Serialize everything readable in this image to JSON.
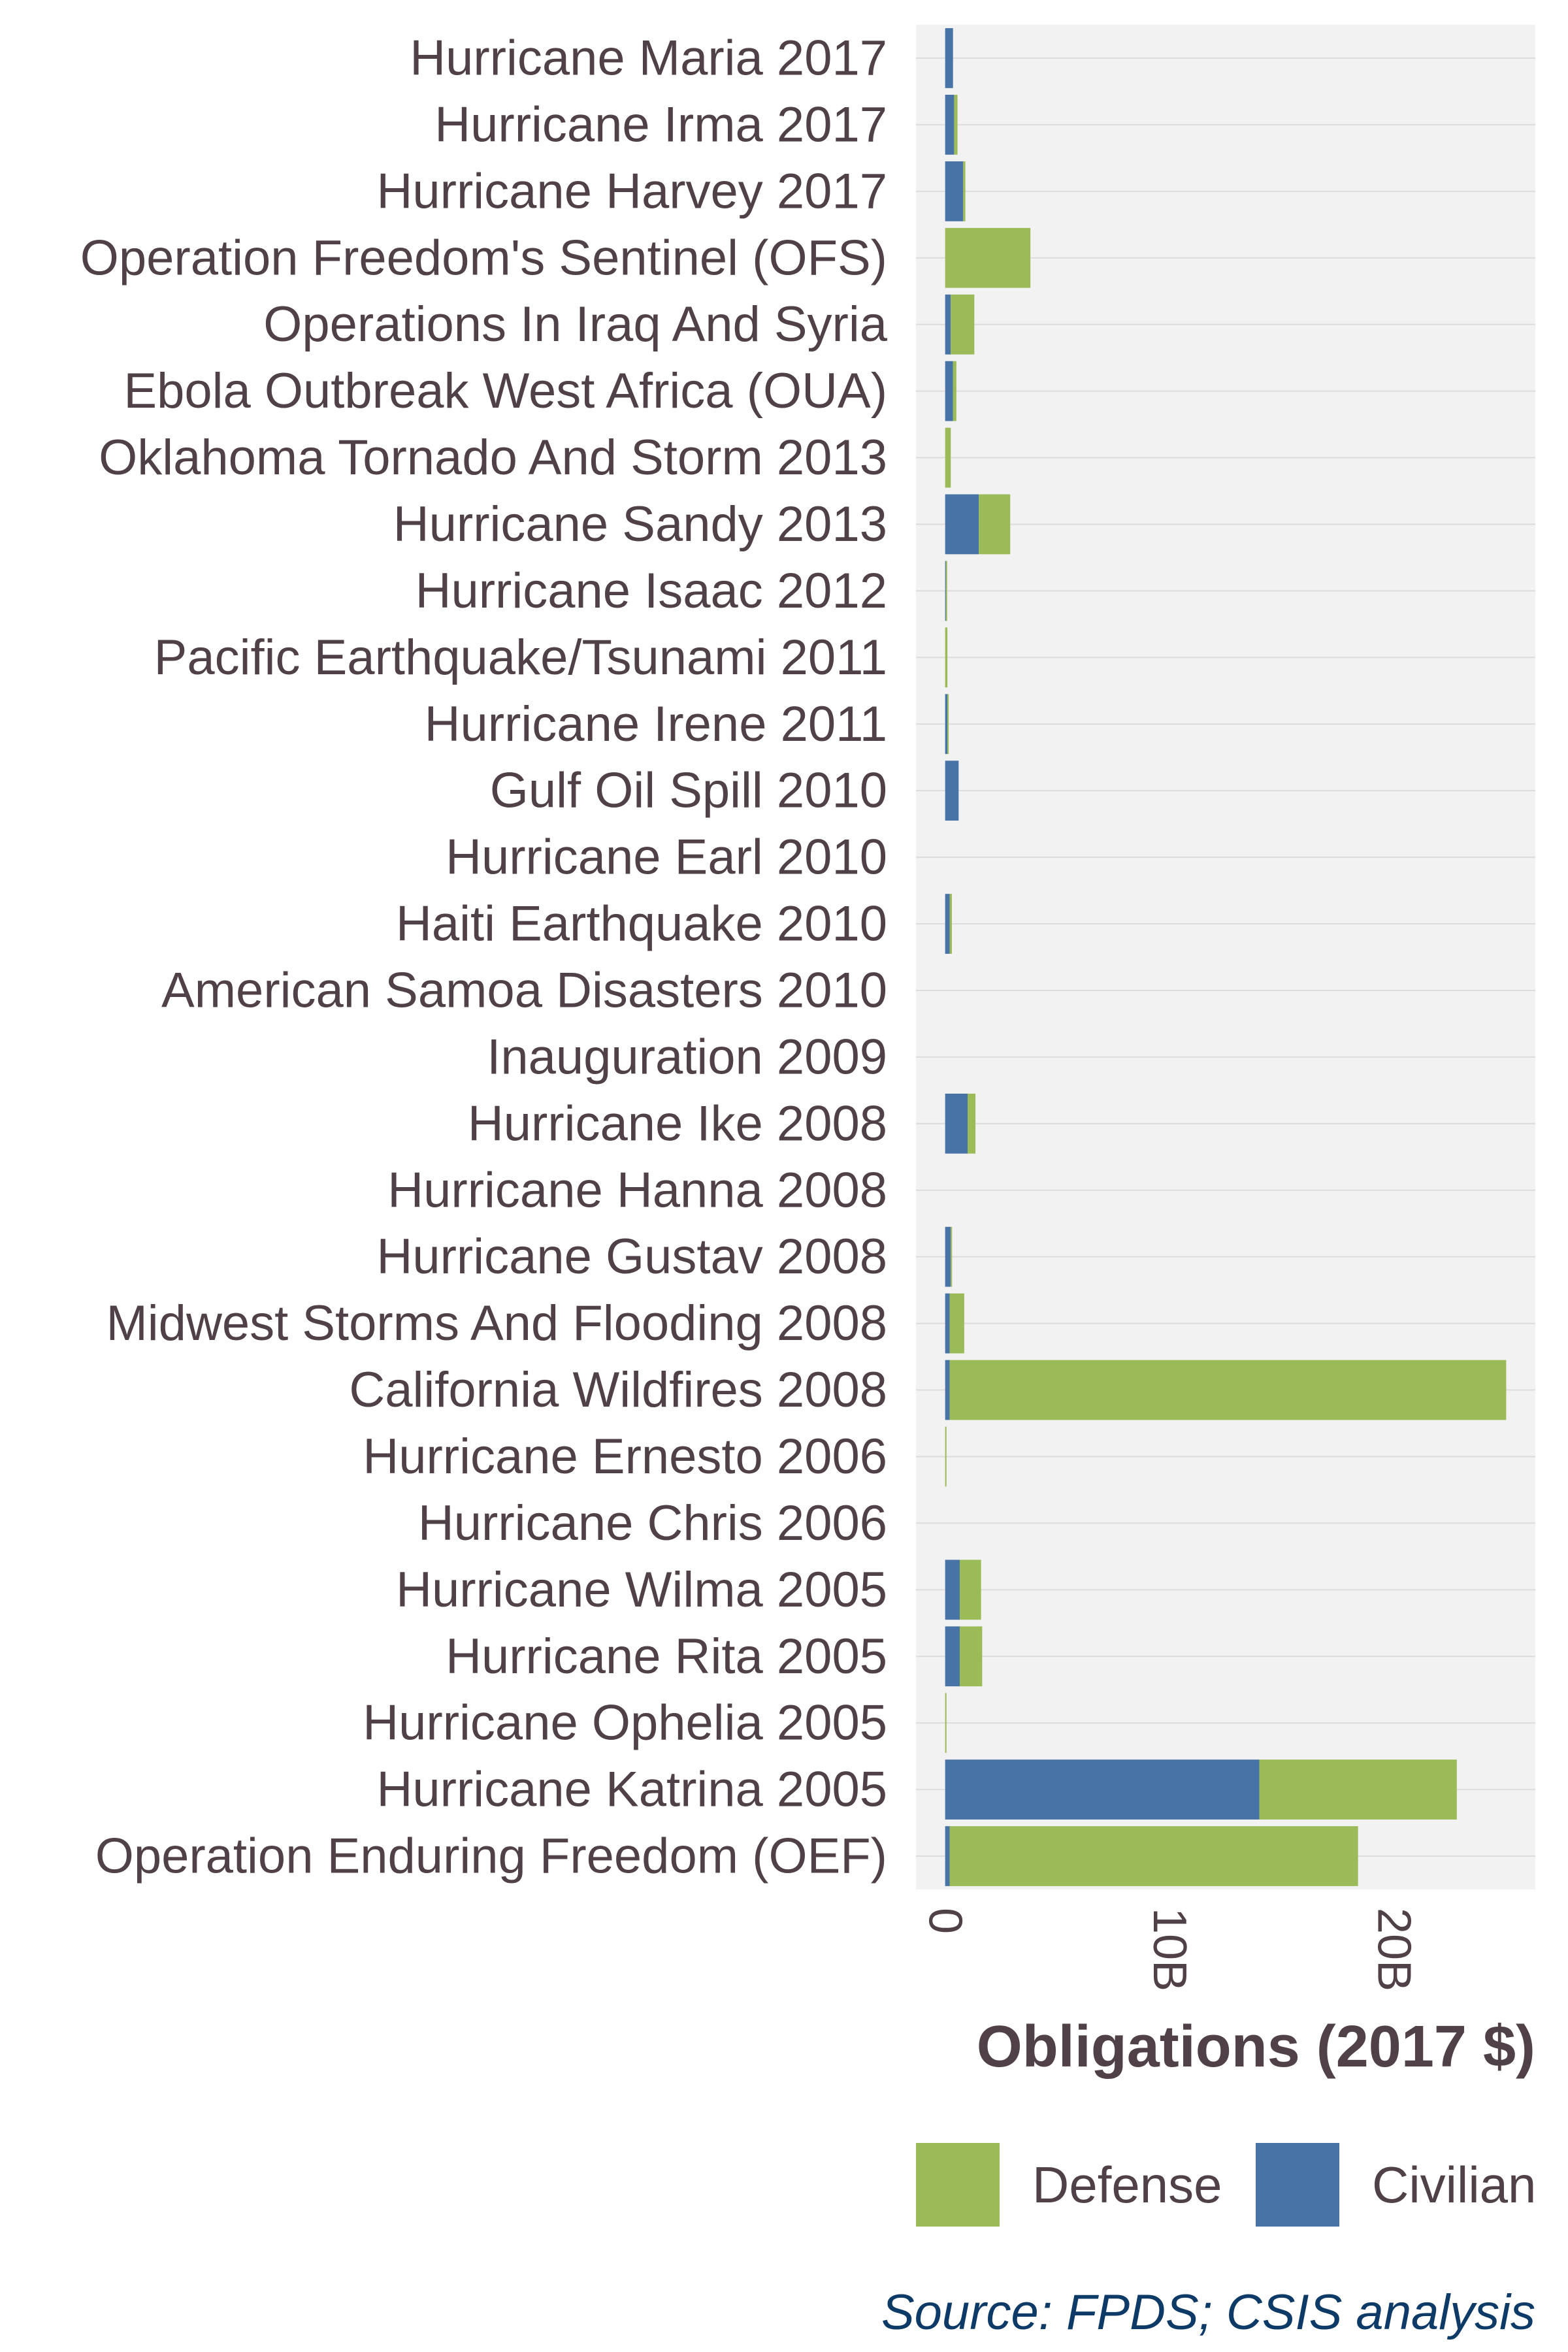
{
  "chart_data": {
    "type": "bar",
    "orientation": "horizontal",
    "stacked": true,
    "categories": [
      "Hurricane Maria 2017",
      "Hurricane Irma 2017",
      "Hurricane Harvey 2017",
      "Operation Freedom's Sentinel (OFS)",
      "Operations In Iraq And Syria",
      "Ebola Outbreak West Africa (OUA)",
      "Oklahoma Tornado And Storm 2013",
      "Hurricane Sandy 2013",
      "Hurricane Isaac 2012",
      "Pacific Earthquake/Tsunami 2011",
      "Hurricane Irene 2011",
      "Gulf Oil Spill 2010",
      "Hurricane Earl 2010",
      "Haiti Earthquake 2010",
      "American Samoa Disasters 2010",
      "Inauguration 2009",
      "Hurricane Ike 2008",
      "Hurricane Hanna 2008",
      "Hurricane Gustav 2008",
      "Midwest Storms And Flooding 2008",
      "California Wildfires 2008",
      "Hurricane Ernesto 2006",
      "Hurricane Chris 2006",
      "Hurricane Wilma 2005",
      "Hurricane Rita 2005",
      "Hurricane Ophelia 2005",
      "Hurricane Katrina 2005",
      "Operation Enduring Freedom (OEF)"
    ],
    "series": [
      {
        "name": "Civilian",
        "color": "#4873a6",
        "values": [
          0.35,
          0.4,
          0.8,
          0.0,
          0.25,
          0.35,
          0.0,
          1.5,
          0.03,
          0.0,
          0.1,
          0.6,
          0.0,
          0.2,
          0.0,
          0.0,
          1.0,
          0.0,
          0.25,
          0.2,
          0.2,
          0.0,
          0.0,
          0.65,
          0.65,
          0.0,
          14.0,
          0.2
        ]
      },
      {
        "name": "Defense",
        "color": "#9bbb59",
        "values": [
          0.0,
          0.15,
          0.1,
          3.8,
          1.05,
          0.15,
          0.25,
          1.4,
          0.05,
          0.1,
          0.05,
          0.0,
          0.0,
          0.1,
          0.0,
          0.0,
          0.35,
          0.0,
          0.05,
          0.65,
          24.8,
          0.05,
          0.0,
          0.95,
          1.0,
          0.05,
          8.8,
          18.2
        ]
      }
    ],
    "xlabel": "Obligations (2017 $)",
    "ylabel": "",
    "xlim": [
      -1.3,
      26.3
    ],
    "x_ticks": [
      {
        "value": 0,
        "label": "0"
      },
      {
        "value": 10,
        "label": "10B"
      },
      {
        "value": 20,
        "label": "20B"
      }
    ],
    "legend": {
      "position": "bottom",
      "entries": [
        {
          "name": "Defense",
          "color": "#9bbb59"
        },
        {
          "name": "Civilian",
          "color": "#4873a6"
        }
      ]
    },
    "caption": "Source: FPDS; CSIS analysis",
    "grid": true,
    "panel_background": "#f2f2f2"
  }
}
